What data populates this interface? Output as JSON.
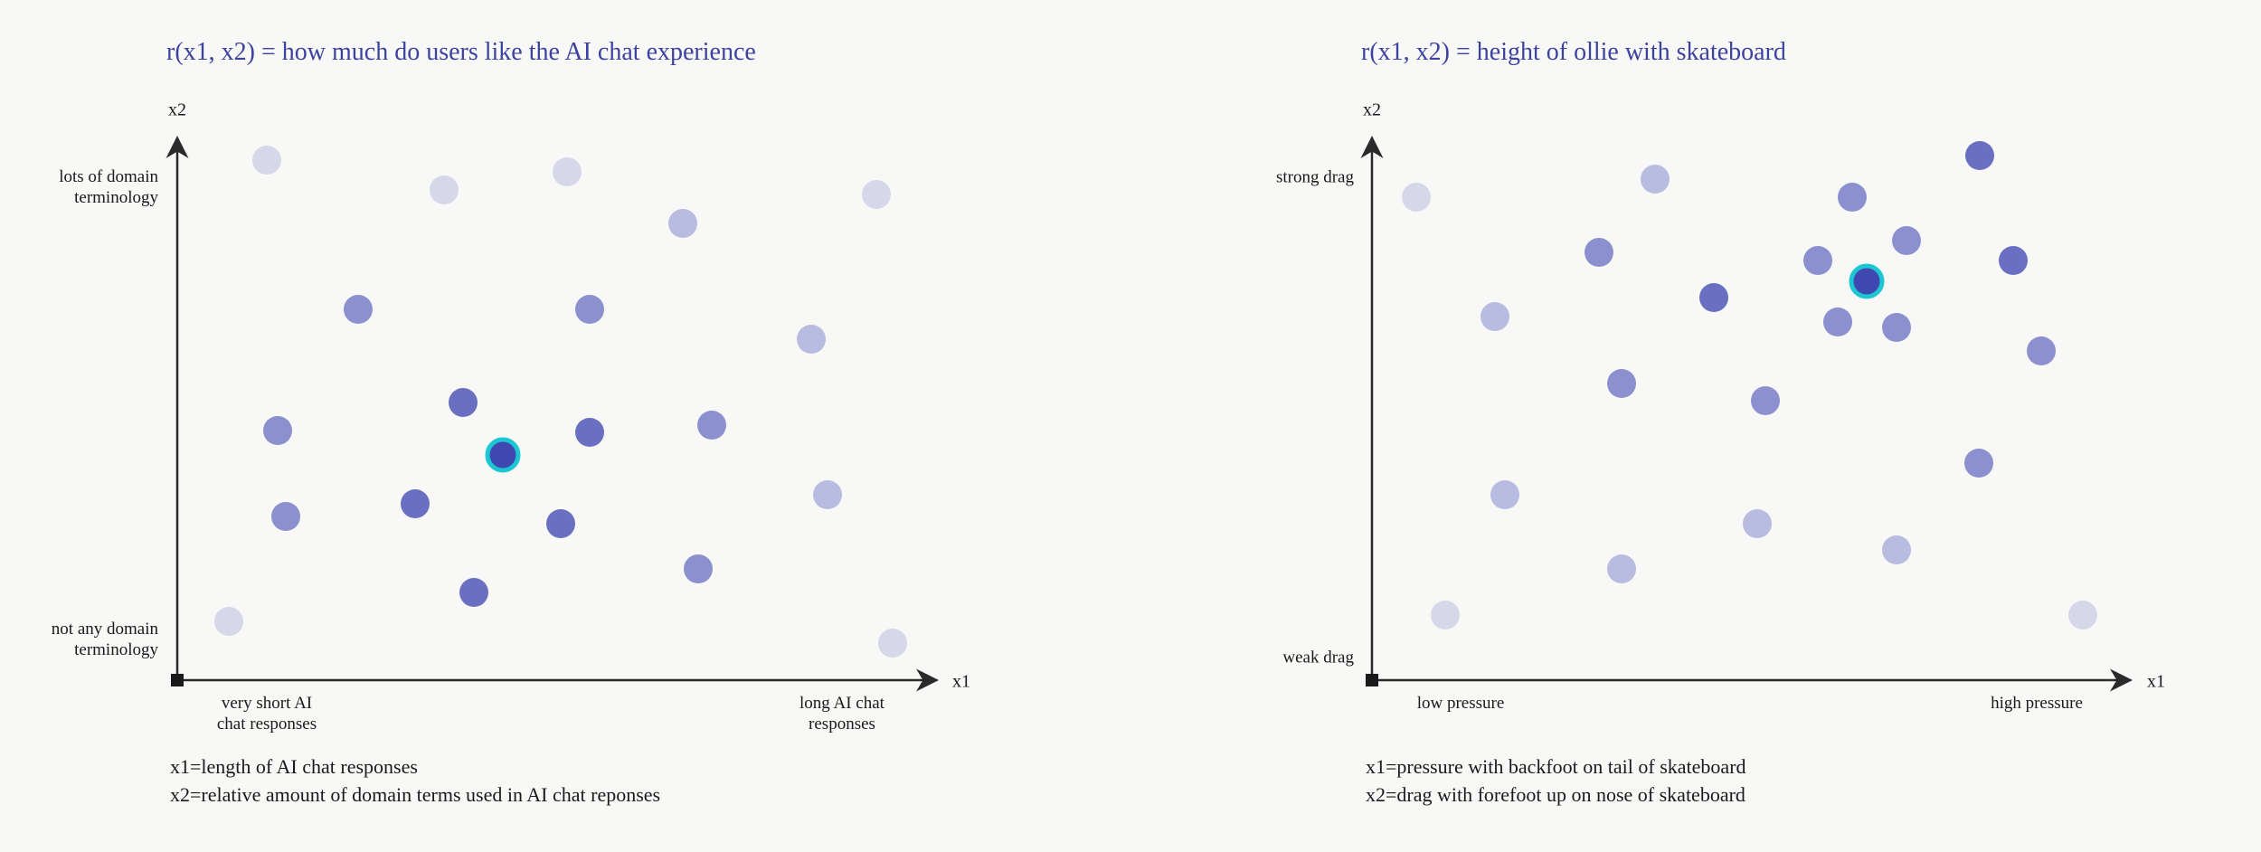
{
  "colors": {
    "title": "#3d42a0",
    "level_1": "#d6d8ea",
    "level_2": "#b9bce1",
    "level_3": "#8c90cf",
    "level_4": "#6a6fc2",
    "optimum_fill": "#3f47b0",
    "optimum_ring": "#1cc6d2",
    "axis": "#2a2a2a"
  },
  "plots": [
    {
      "title": "r(x1, x2) = how much do users like the AI chat experience",
      "x_axis": "x1",
      "y_axis": "x2",
      "y_high": [
        "lots of domain",
        "terminology"
      ],
      "y_low": [
        "not any domain",
        "terminology"
      ],
      "x_low": [
        "very short AI",
        "chat responses"
      ],
      "x_high": [
        "long AI chat",
        "responses"
      ],
      "caption": [
        "x1=length of AI chat responses",
        "x2=relative amount of domain terms used in AI chat reponses"
      ],
      "point_levels": [
        1,
        1,
        1,
        2,
        1,
        3,
        3,
        2,
        4,
        3,
        4,
        3,
        "optimum",
        3,
        4,
        4,
        2,
        3,
        4,
        1,
        1
      ]
    },
    {
      "title": "r(x1, x2) = height of ollie with skateboard",
      "x_axis": "x1",
      "y_axis": "x2",
      "y_high": [
        "strong drag"
      ],
      "y_low": [
        "weak drag"
      ],
      "x_low": [
        "low pressure"
      ],
      "x_high": [
        "high pressure"
      ],
      "caption": [
        "x1=pressure with backfoot on tail of skateboard",
        "x2=drag with forefoot up on nose of skateboard"
      ],
      "point_levels": [
        1,
        2,
        4,
        3,
        3,
        3,
        3,
        4,
        "optimum",
        4,
        2,
        3,
        3,
        3,
        3,
        3,
        3,
        2,
        2,
        2,
        2,
        1,
        1
      ]
    }
  ]
}
